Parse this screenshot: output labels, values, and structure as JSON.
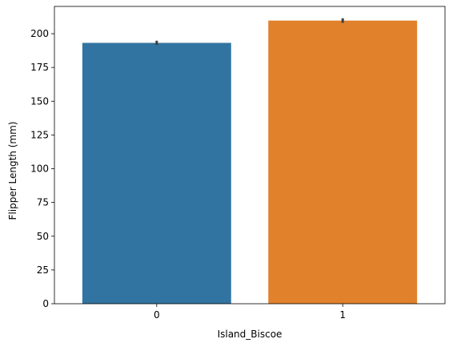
{
  "chart_data": {
    "type": "bar",
    "title": "",
    "xlabel": "Island_Biscoe",
    "ylabel": "Flipper Length (mm)",
    "categories": [
      "0",
      "1"
    ],
    "values": [
      193.2,
      209.7
    ],
    "error_bars": [
      [
        191.6,
        194.8
      ],
      [
        208.0,
        211.4
      ]
    ],
    "colors": [
      "#3274a1",
      "#e1812c"
    ],
    "error_color": "#3f3f3f",
    "ylim": [
      0,
      220.2
    ],
    "yticks": [
      0,
      25,
      50,
      75,
      100,
      125,
      150,
      175,
      200
    ],
    "grid": false,
    "legend": "none"
  }
}
